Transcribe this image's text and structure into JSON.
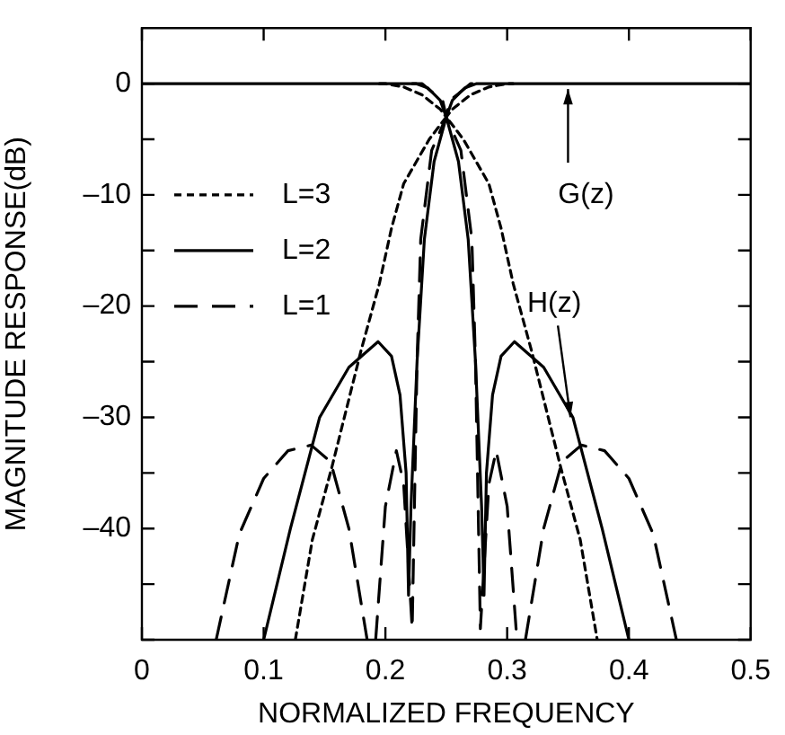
{
  "chart_data": {
    "type": "line",
    "xlabel": "NORMALIZED FREQUENCY",
    "ylabel": "MAGNITUDE RESPONSE(dB)",
    "xlim": [
      0,
      0.5
    ],
    "xticks": [
      0,
      0.1,
      0.2,
      0.3,
      0.4,
      0.5
    ],
    "ylim": [
      -50,
      5
    ],
    "yticks": [
      {
        "value": -50,
        "label": null
      },
      {
        "value": -45,
        "label": null
      },
      {
        "value": -40,
        "label": "–40"
      },
      {
        "value": -35,
        "label": null
      },
      {
        "value": -30,
        "label": "–30"
      },
      {
        "value": -25,
        "label": null
      },
      {
        "value": -20,
        "label": "–20"
      },
      {
        "value": -15,
        "label": null
      },
      {
        "value": -10,
        "label": "–10"
      },
      {
        "value": -5,
        "label": null
      },
      0
    ],
    "grid": false,
    "legend": "left",
    "marker": "none",
    "annotations": [
      {
        "text": "G(z)",
        "x": 0.35,
        "y": 0
      },
      {
        "text": "H(z)",
        "x": 0.352,
        "y": -30
      }
    ],
    "series": [
      {
        "name": "L=3",
        "color": "#000000",
        "line_style": "dotted",
        "x": [
          0.126,
          0.14,
          0.156,
          0.18,
          0.195,
          0.205,
          0.215,
          0.236,
          0.25,
          0.264,
          0.285,
          0.295,
          0.305,
          0.32,
          0.344,
          0.36,
          0.374
        ],
        "values": [
          -50,
          -41,
          -34.5,
          -24,
          -18,
          -13,
          -9,
          -5,
          -3,
          -5,
          -9,
          -13,
          -18,
          -24,
          -34.5,
          -41,
          -50
        ]
      },
      {
        "name": "L=2",
        "color": "#000000",
        "line_style": "solid",
        "x": [
          0.1,
          0.122,
          0.146,
          0.17,
          0.194,
          0.205,
          0.212,
          0.217,
          0.219,
          0.221,
          0.226,
          0.232,
          0.24,
          0.25,
          0.26,
          0.268,
          0.274,
          0.279,
          0.281,
          0.283,
          0.288,
          0.295,
          0.306,
          0.33,
          0.354,
          0.378,
          0.4
        ],
        "values": [
          -50,
          -40,
          -30,
          -25.5,
          -23.2,
          -24.5,
          -28,
          -35,
          -46,
          -38,
          -25,
          -14,
          -7,
          -3,
          -7,
          -14,
          -25,
          -38,
          -46,
          -35,
          -28,
          -24.5,
          -23.2,
          -25.5,
          -30,
          -40,
          -50
        ]
      },
      {
        "name": "L=1",
        "color": "#000000",
        "line_style": "dashed",
        "x": [
          0.061,
          0.08,
          0.1,
          0.12,
          0.139,
          0.155,
          0.17,
          0.185,
          0.188,
          0.192,
          0.2,
          0.209,
          0.215,
          0.222,
          0.226,
          0.229,
          0.238,
          0.25,
          0.262,
          0.271,
          0.274,
          0.278,
          0.285,
          0.291,
          0.3,
          0.308,
          0.312,
          0.315,
          0.33,
          0.345,
          0.361,
          0.38,
          0.4,
          0.42,
          0.439
        ],
        "values": [
          -50,
          -40.5,
          -35.5,
          -33,
          -32.5,
          -34,
          -40,
          -50,
          null,
          -50,
          -38,
          -33,
          -36,
          -49,
          -25,
          -14,
          -6,
          -3,
          -6,
          -14,
          -25,
          -49,
          -36,
          -33,
          -38,
          -50,
          null,
          -50,
          -40,
          -34,
          -32.5,
          -33,
          -35.5,
          -40.5,
          -50
        ]
      },
      {
        "color": "#000000",
        "line_style": "dotted",
        "x": [
          0.195,
          0.2,
          0.215,
          0.23,
          0.245,
          0.25,
          0.255,
          0.27,
          0.285,
          0.3,
          0.305
        ],
        "values": [
          0,
          0,
          -0.3,
          -1,
          -2.3,
          -3,
          -2.3,
          -1,
          -0.3,
          0,
          0
        ]
      },
      {
        "color": "#000000",
        "line_style": "dashed",
        "x": [
          0.222,
          0.23,
          0.24,
          0.247,
          0.25,
          0.253,
          0.26,
          0.27,
          0.278
        ],
        "values": [
          0,
          0,
          -0.9,
          -1.5,
          -3,
          -1.5,
          -0.9,
          0,
          0
        ]
      },
      {
        "color": "#000000",
        "line_style": "solid",
        "x": [
          0,
          0.225,
          0.235,
          0.245,
          0.25,
          0.255,
          0.265,
          0.275,
          0.5
        ],
        "values": [
          0,
          0,
          -0.4,
          -1.5,
          -3,
          -1.5,
          -0.4,
          0,
          0
        ]
      }
    ]
  }
}
